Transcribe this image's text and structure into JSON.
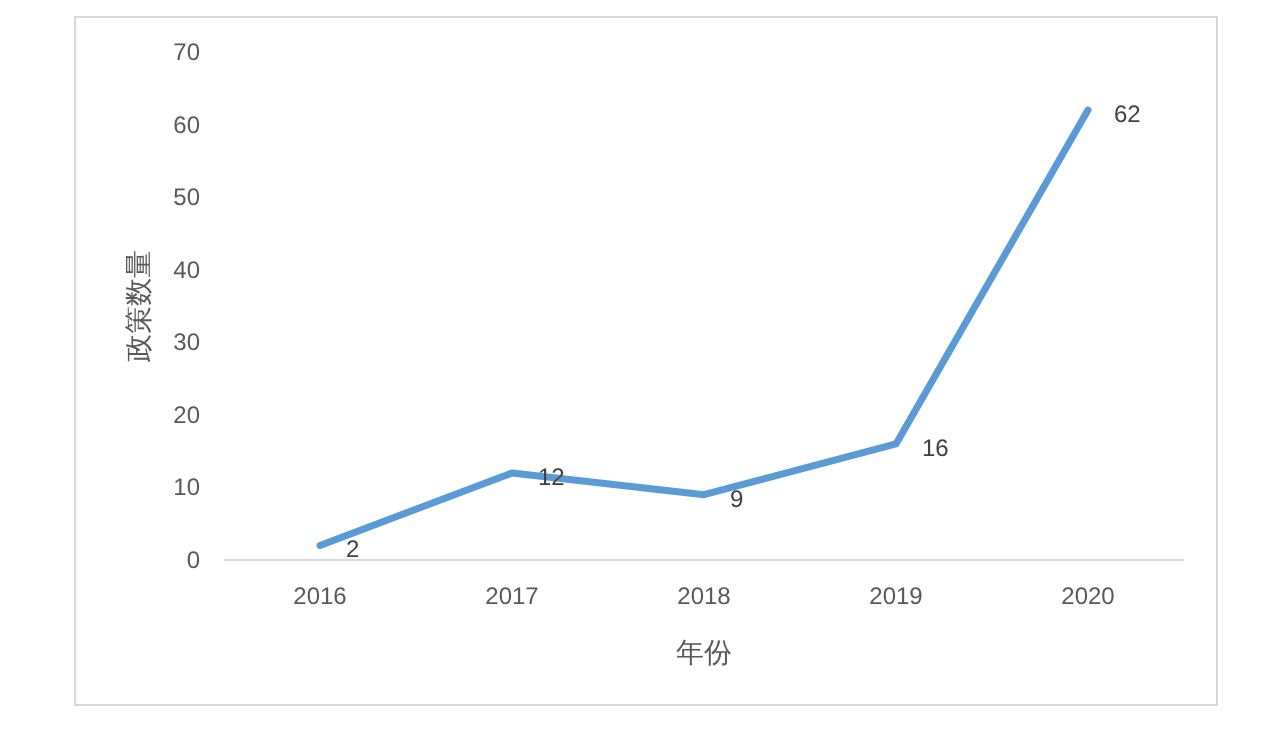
{
  "chart_data": {
    "type": "line",
    "xlabel": "年份",
    "ylabel": "政策数量",
    "categories": [
      "2016",
      "2017",
      "2018",
      "2019",
      "2020"
    ],
    "series": [
      {
        "color": "#5b9bd5",
        "values": [
          2,
          12,
          9,
          16,
          62
        ]
      }
    ],
    "ylim": [
      0,
      70
    ],
    "yticks": [
      0,
      10,
      20,
      30,
      40,
      50,
      60,
      70
    ],
    "data_labels": true,
    "grid": false,
    "marker": "none"
  }
}
